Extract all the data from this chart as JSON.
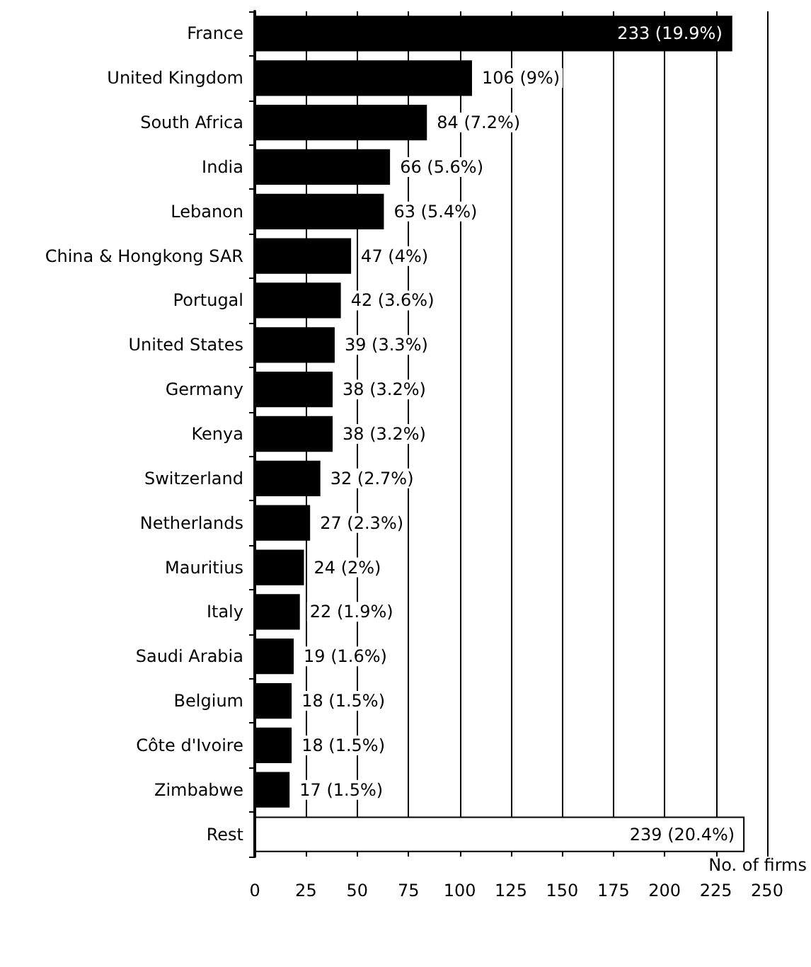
{
  "chart_data": {
    "type": "bar",
    "orientation": "horizontal",
    "xlabel": "No. of firms",
    "categories": [
      "France",
      "United Kingdom",
      "South Africa",
      "India",
      "Lebanon",
      "China & Hongkong SAR",
      "Portugal",
      "United States",
      "Germany",
      "Kenya",
      "Switzerland",
      "Netherlands",
      "Mauritius",
      "Italy",
      "Saudi Arabia",
      "Belgium",
      "Côte d'Ivoire",
      "Zimbabwe",
      "Rest"
    ],
    "values": [
      233,
      106,
      84,
      66,
      63,
      47,
      42,
      39,
      38,
      38,
      32,
      27,
      24,
      22,
      19,
      18,
      18,
      17,
      239
    ],
    "value_labels": [
      "233 (19.9%)",
      "106 (9%)",
      "84 (7.2%)",
      "66 (5.6%)",
      "63 (5.4%)",
      "47 (4%)",
      "42 (3.6%)",
      "39 (3.3%)",
      "38 (3.2%)",
      "38 (3.2%)",
      "32 (2.7%)",
      "27 (2.3%)",
      "24 (2%)",
      "22 (1.9%)",
      "19 (1.6%)",
      "18 (1.5%)",
      "18 (1.5%)",
      "17 (1.5%)",
      "239 (20.4%)"
    ],
    "colors": [
      "#000000",
      "#000000",
      "#000000",
      "#000000",
      "#000000",
      "#000000",
      "#000000",
      "#000000",
      "#000000",
      "#000000",
      "#000000",
      "#000000",
      "#000000",
      "#000000",
      "#000000",
      "#000000",
      "#000000",
      "#000000",
      "#ffffff"
    ],
    "xlim": [
      0,
      250
    ],
    "xticks": [
      0,
      25,
      50,
      75,
      100,
      125,
      150,
      175,
      200,
      225,
      250
    ],
    "grid": "x"
  }
}
